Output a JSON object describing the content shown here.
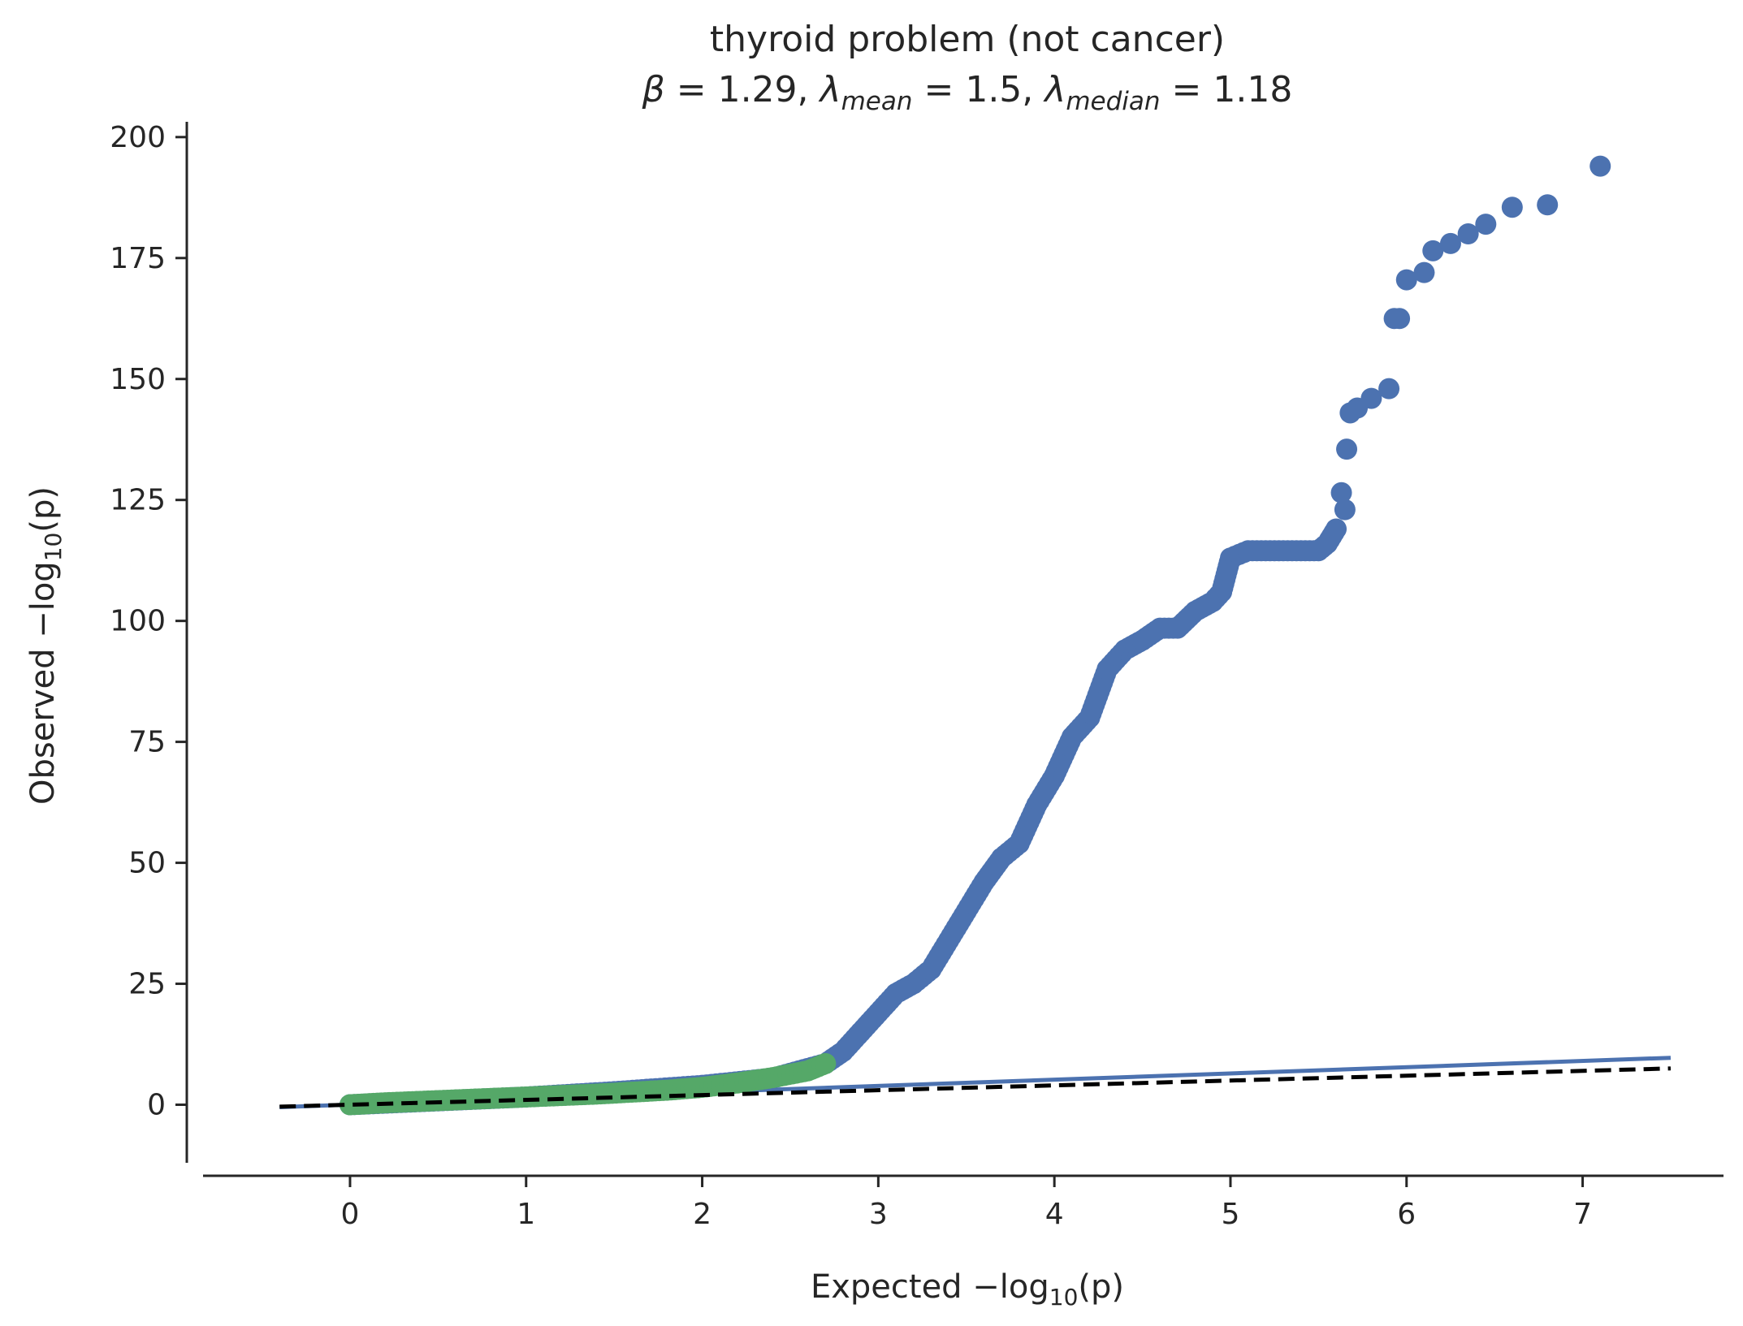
{
  "chart_data": {
    "type": "scatter",
    "title_line1": "thyroid problem (not cancer)",
    "title_line2": {
      "beta_symbol": "β",
      "beta_value": "1.29",
      "lambda_symbol": "λ",
      "lambda_mean_sub": "mean",
      "lambda_mean_value": "1.5",
      "lambda_median_sub": "median",
      "lambda_median_value": "1.18"
    },
    "xlabel": {
      "prefix": "Expected −log",
      "sub": "10",
      "suffix": "(p)"
    },
    "ylabel": {
      "prefix": "Observed −log",
      "sub": "10",
      "suffix": "(p)"
    },
    "xlim": [
      -0.95,
      7.8
    ],
    "ylim": [
      -12,
      204
    ],
    "x_ticks": [
      0,
      1,
      2,
      3,
      4,
      5,
      6,
      7
    ],
    "x_tick_labels": [
      "0",
      "1",
      "2",
      "3",
      "4",
      "5",
      "6",
      "7"
    ],
    "y_ticks": [
      0,
      25,
      50,
      75,
      100,
      125,
      150,
      175,
      200
    ],
    "y_tick_labels": [
      "0",
      "25",
      "50",
      "75",
      "100",
      "125",
      "150",
      "175",
      "200"
    ],
    "grid": false,
    "series": [
      {
        "color": "#4c72b0",
        "points": [
          [
            0,
            0
          ],
          [
            0.5,
            0.8
          ],
          [
            1.0,
            1.6
          ],
          [
            1.5,
            2.7
          ],
          [
            2.0,
            4.0
          ],
          [
            2.4,
            5.5
          ],
          [
            2.7,
            8.5
          ],
          [
            2.8,
            11
          ],
          [
            2.9,
            15
          ],
          [
            3.0,
            19
          ],
          [
            3.1,
            23
          ],
          [
            3.2,
            25
          ],
          [
            3.3,
            28
          ],
          [
            3.4,
            34
          ],
          [
            3.5,
            40
          ],
          [
            3.6,
            46
          ],
          [
            3.7,
            51
          ],
          [
            3.8,
            54
          ],
          [
            3.9,
            62
          ],
          [
            4.0,
            68
          ],
          [
            4.1,
            76
          ],
          [
            4.2,
            80
          ],
          [
            4.3,
            90
          ],
          [
            4.4,
            94
          ],
          [
            4.5,
            96
          ],
          [
            4.6,
            98.5
          ],
          [
            4.7,
            98.5
          ],
          [
            4.8,
            102
          ],
          [
            4.9,
            104
          ],
          [
            4.95,
            106
          ],
          [
            5.0,
            113
          ],
          [
            5.1,
            114.5
          ],
          [
            5.3,
            114.5
          ],
          [
            5.5,
            114.5
          ],
          [
            5.55,
            116
          ],
          [
            5.6,
            119
          ],
          [
            5.65,
            123
          ],
          [
            5.63,
            126.5
          ],
          [
            5.66,
            135.5
          ],
          [
            5.68,
            143
          ],
          [
            5.72,
            144
          ],
          [
            5.8,
            146
          ],
          [
            5.9,
            148
          ],
          [
            5.93,
            162.5
          ],
          [
            5.96,
            162.5
          ],
          [
            6.0,
            170.5
          ],
          [
            6.1,
            172
          ],
          [
            6.15,
            176.5
          ],
          [
            6.25,
            178
          ],
          [
            6.35,
            180
          ],
          [
            6.45,
            182
          ],
          [
            6.6,
            185.5
          ],
          [
            6.8,
            186
          ],
          [
            7.1,
            194
          ]
        ]
      },
      {
        "color": "#55a868",
        "points": [
          [
            0,
            0
          ],
          [
            0.2,
            0.4
          ],
          [
            0.4,
            0.7
          ],
          [
            0.6,
            1.0
          ],
          [
            0.8,
            1.3
          ],
          [
            1.0,
            1.6
          ],
          [
            1.2,
            1.9
          ],
          [
            1.4,
            2.2
          ],
          [
            1.6,
            2.6
          ],
          [
            1.8,
            3.0
          ],
          [
            2.0,
            3.6
          ],
          [
            2.2,
            4.5
          ],
          [
            2.4,
            5.6
          ],
          [
            2.6,
            7.0
          ],
          [
            2.7,
            8.5
          ]
        ]
      }
    ],
    "fit_line": {
      "color": "#4c72b0",
      "x": [
        -0.4,
        7.5
      ],
      "y": [
        -0.5,
        9.7
      ]
    },
    "null_line": {
      "color": "#000000",
      "style": "dashed",
      "x": [
        -0.4,
        7.5
      ],
      "y": [
        -0.4,
        7.5
      ]
    }
  }
}
